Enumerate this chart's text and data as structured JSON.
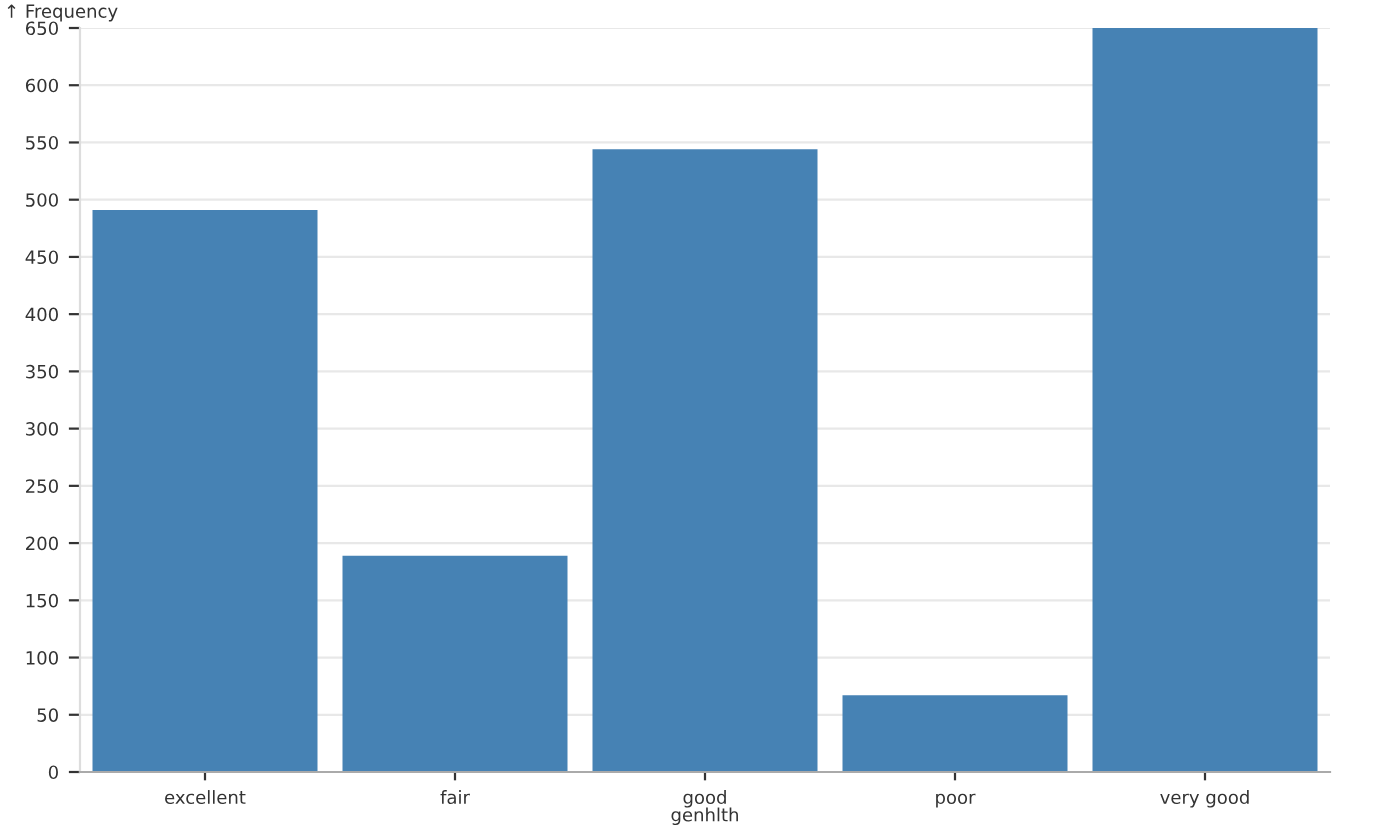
{
  "chart_data": {
    "type": "bar",
    "ylabel": "↑ Frequency",
    "xlabel": "genhlth",
    "categories": [
      "excellent",
      "fair",
      "good",
      "poor",
      "very good"
    ],
    "values": [
      491,
      189,
      544,
      67,
      650
    ],
    "color": "#4682b4",
    "ylim": [
      0,
      650
    ],
    "yticks": [
      0,
      50,
      100,
      150,
      200,
      250,
      300,
      350,
      400,
      450,
      500,
      550,
      600,
      650
    ],
    "grid": "y"
  }
}
